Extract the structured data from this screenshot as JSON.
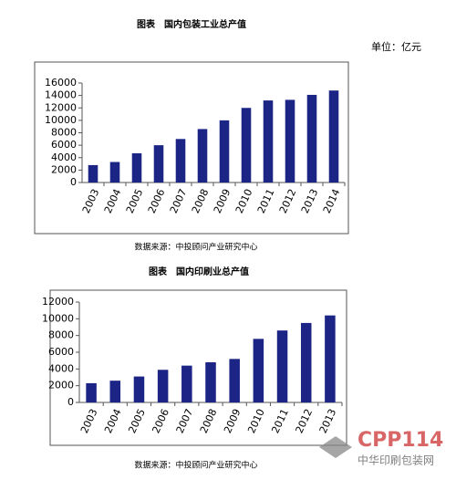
{
  "chart_data": [
    {
      "type": "bar",
      "title": "图表　国内包装工业总产值",
      "unit": "单位：亿元",
      "source": "数据来源：中投顾问产业研究中心",
      "categories": [
        "2003",
        "2004",
        "2005",
        "2006",
        "2007",
        "2008",
        "2009",
        "2010",
        "2011",
        "2012",
        "2013",
        "2014"
      ],
      "values": [
        2800,
        3300,
        4700,
        6000,
        7000,
        8600,
        10000,
        12000,
        13200,
        13300,
        14100,
        14800
      ],
      "color": "#1c2585",
      "ylim": [
        0,
        16000
      ],
      "yticks": [
        0,
        2000,
        4000,
        6000,
        8000,
        10000,
        12000,
        14000,
        16000
      ]
    },
    {
      "type": "bar",
      "title": "图表　国内印刷业总产值",
      "source": "数据来源：中投顾问产业研究中心",
      "categories": [
        "2003",
        "2004",
        "2005",
        "2006",
        "2007",
        "2008",
        "2009",
        "2010",
        "2011",
        "2012",
        "2013"
      ],
      "values": [
        2300,
        2600,
        3100,
        3900,
        4400,
        4800,
        5200,
        7600,
        8600,
        9500,
        10400
      ],
      "color": "#1c2585",
      "ylim": [
        0,
        12000
      ],
      "yticks": [
        0,
        2000,
        4000,
        6000,
        8000,
        10000,
        12000
      ]
    }
  ],
  "watermark": {
    "logo": "CPP114",
    "name": "中华印刷包装网"
  }
}
